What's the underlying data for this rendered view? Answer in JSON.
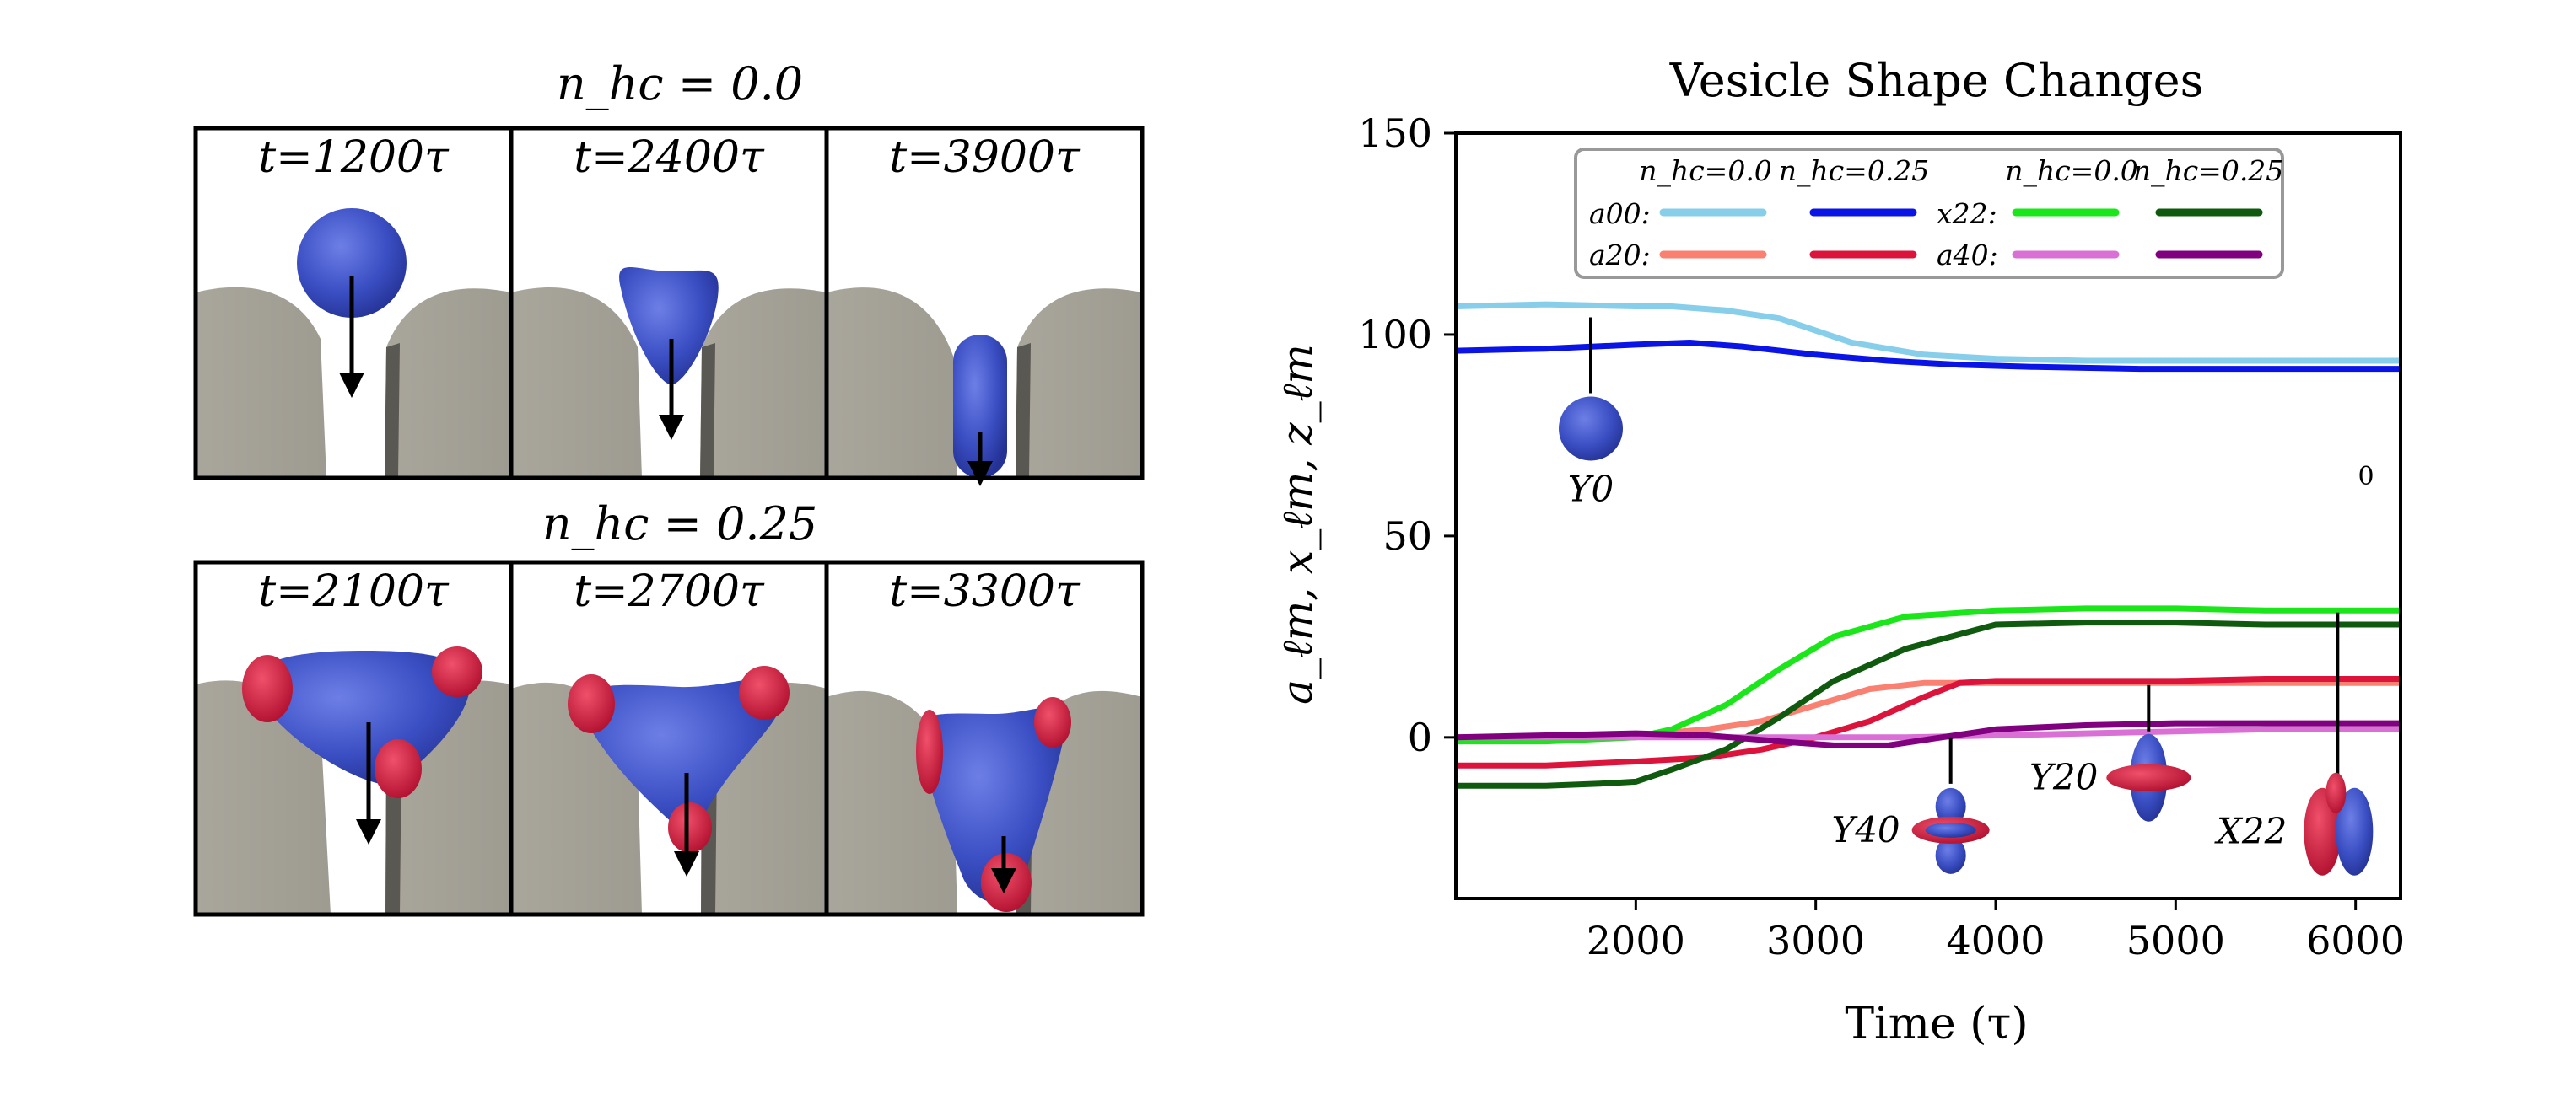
{
  "snapshots": {
    "rows": [
      {
        "title": "n_hc = 0.0",
        "panels": [
          {
            "label": "t=1200τ",
            "stage": "approach"
          },
          {
            "label": "t=2400τ",
            "stage": "squeeze"
          },
          {
            "label": "t=3900τ",
            "stage": "inside"
          }
        ]
      },
      {
        "title": "n_hc = 0.25",
        "panels": [
          {
            "label": "t=2100τ",
            "stage": "approach"
          },
          {
            "label": "t=2700τ",
            "stage": "squeeze"
          },
          {
            "label": "t=3300τ",
            "stage": "inside"
          }
        ]
      }
    ]
  },
  "chart_data": {
    "type": "line",
    "title": "Vesicle Shape Changes",
    "xlabel": "Time (τ)",
    "ylabel": "a_ℓm, x_ℓm, z_ℓm",
    "xlim": [
      1000,
      6250
    ],
    "ylim": [
      -40,
      150
    ],
    "xticks": [
      2000,
      3000,
      4000,
      5000,
      6000
    ],
    "yticks": [
      0,
      50,
      100,
      150
    ],
    "legend": {
      "placement": "top",
      "col_headers": [
        "n_hc=0.0",
        "n_hc=0.25",
        "n_hc=0.0",
        "n_hc=0.25"
      ],
      "row_labels": [
        "a00:",
        "a20:",
        "x22:",
        "a40:"
      ]
    },
    "series": [
      {
        "name": "a00 n_hc=0.0",
        "color": "#87ceeb",
        "x": [
          1000,
          1500,
          2000,
          2200,
          2500,
          2800,
          3200,
          3600,
          4000,
          4500,
          5000,
          5500,
          6000,
          6250
        ],
        "y": [
          107,
          107.5,
          107,
          107,
          106,
          104,
          98,
          95,
          94,
          93.5,
          93.5,
          93.5,
          93.5,
          93.5
        ]
      },
      {
        "name": "a00 n_hc=0.25",
        "color": "#0a14e6",
        "x": [
          1000,
          1500,
          2000,
          2300,
          2600,
          3000,
          3400,
          3800,
          4200,
          4800,
          5400,
          6000,
          6250
        ],
        "y": [
          96,
          96.5,
          97.5,
          98,
          97,
          95,
          93.5,
          92.5,
          92,
          91.5,
          91.5,
          91.5,
          91.5
        ]
      },
      {
        "name": "a20 n_hc=0.0",
        "color": "#fa8072",
        "x": [
          1000,
          1500,
          2000,
          2400,
          2700,
          3000,
          3300,
          3600,
          4000,
          4500,
          5000,
          6000,
          6250
        ],
        "y": [
          0,
          0,
          0.5,
          2,
          4,
          8,
          12,
          13.5,
          13.5,
          13.5,
          13.5,
          13.5,
          13.5
        ]
      },
      {
        "name": "a20 n_hc=0.25",
        "color": "#dc143c",
        "x": [
          1000,
          1500,
          2000,
          2400,
          2700,
          3000,
          3300,
          3600,
          3800,
          4000,
          4500,
          5000,
          5500,
          6000,
          6250
        ],
        "y": [
          -7,
          -7,
          -6,
          -5,
          -3,
          0,
          4,
          10,
          13.5,
          14,
          14,
          14,
          14.5,
          14.5,
          14.5
        ]
      },
      {
        "name": "x22 n_hc=0.0",
        "color": "#1ae61a",
        "x": [
          1000,
          1500,
          2000,
          2200,
          2500,
          2800,
          3100,
          3500,
          4000,
          4500,
          5000,
          5500,
          6000,
          6250
        ],
        "y": [
          -1,
          -1,
          0,
          2,
          8,
          17,
          25,
          30,
          31.5,
          32,
          32,
          31.5,
          31.5,
          31.5
        ]
      },
      {
        "name": "x22 n_hc=0.25",
        "color": "#0f5a0f",
        "x": [
          1000,
          1500,
          1800,
          2000,
          2200,
          2500,
          2800,
          3100,
          3500,
          4000,
          4500,
          5000,
          5500,
          6000,
          6250
        ],
        "y": [
          -12,
          -12,
          -11.5,
          -11,
          -8,
          -3,
          5,
          14,
          22,
          28,
          28.5,
          28.5,
          28,
          28,
          28
        ]
      },
      {
        "name": "a40 n_hc=0.0",
        "color": "#da70d6",
        "x": [
          1000,
          1500,
          2000,
          2500,
          3000,
          3500,
          4000,
          4500,
          5000,
          5500,
          6000,
          6250
        ],
        "y": [
          0,
          0,
          0,
          0,
          0,
          0,
          0.5,
          1,
          1.5,
          2,
          2,
          2
        ]
      },
      {
        "name": "a40 n_hc=0.25",
        "color": "#800080",
        "x": [
          1000,
          1500,
          2000,
          2400,
          2800,
          3100,
          3400,
          3700,
          4000,
          4500,
          5000,
          5500,
          6000,
          6250
        ],
        "y": [
          0,
          0.5,
          1,
          0.5,
          -1,
          -2,
          -2,
          0,
          2,
          3,
          3.5,
          3.5,
          3.5,
          3.5
        ]
      }
    ],
    "annotations": [
      {
        "label": "Y0",
        "x": 1750,
        "y": 98,
        "kind": "sphere"
      },
      {
        "label": "Y40",
        "x": 3750,
        "y": 0,
        "kind": "y40"
      },
      {
        "label": "Y20",
        "x": 4850,
        "y": 13,
        "kind": "y20"
      },
      {
        "label": "X22",
        "x": 5900,
        "y": 31,
        "kind": "x22"
      }
    ],
    "stray_text": "0"
  }
}
